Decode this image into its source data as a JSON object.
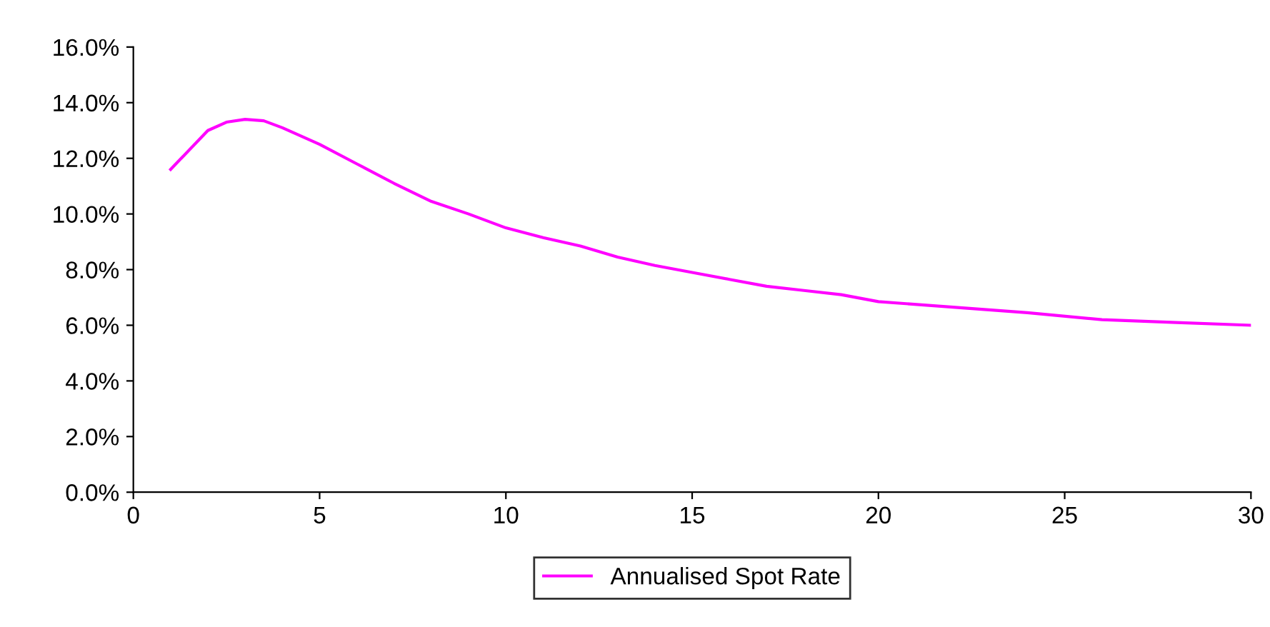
{
  "chart_data": {
    "type": "line",
    "x": [
      1,
      2,
      2.5,
      3,
      3.5,
      4,
      5,
      6,
      7,
      8,
      9,
      10,
      11,
      12,
      13,
      14,
      15,
      16,
      17,
      18,
      19,
      20,
      22,
      24,
      26,
      28,
      30
    ],
    "series": [
      {
        "name": "Annualised Spot Rate",
        "color": "#ff00ff",
        "values": [
          11.6,
          13.0,
          13.3,
          13.4,
          13.35,
          13.1,
          12.5,
          11.8,
          11.1,
          10.45,
          10.0,
          9.5,
          9.15,
          8.85,
          8.45,
          8.15,
          7.9,
          7.65,
          7.4,
          7.25,
          7.1,
          6.85,
          6.65,
          6.45,
          6.2,
          6.1,
          6.0
        ]
      }
    ],
    "xlim": [
      0,
      30
    ],
    "xticks": [
      0,
      5,
      10,
      15,
      20,
      25,
      30
    ],
    "ylim": [
      0,
      16
    ],
    "yticks": [
      {
        "value": 0,
        "label": "0.0%"
      },
      {
        "value": 2,
        "label": "2.0%"
      },
      {
        "value": 4,
        "label": "4.0%"
      },
      {
        "value": 6,
        "label": "6.0%"
      },
      {
        "value": 8,
        "label": "8.0%"
      },
      {
        "value": 10,
        "label": "10.0%"
      },
      {
        "value": 12,
        "label": "12.0%"
      },
      {
        "value": 14,
        "label": "14.0%"
      },
      {
        "value": 16,
        "label": "16.0%"
      }
    ],
    "grid": false,
    "legend": "bottom",
    "marker": "none",
    "line_style": "solid"
  }
}
